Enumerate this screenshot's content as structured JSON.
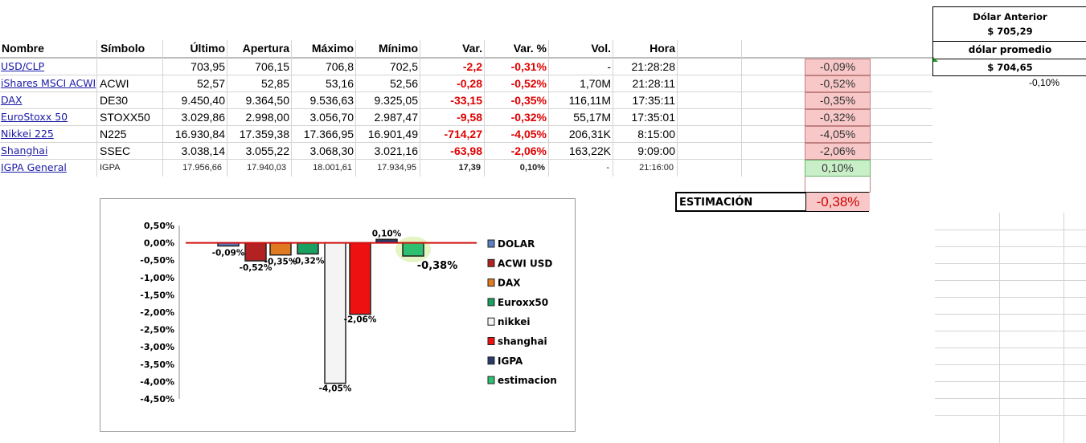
{
  "headers": {
    "nombre": "Nombre",
    "simbolo": "Símbolo",
    "ultimo": "Último",
    "apertura": "Apertura",
    "maximo": "Máximo",
    "minimo": "Mínimo",
    "var": "Var.",
    "var_pct": "Var. %",
    "vol": "Vol.",
    "hora": "Hora"
  },
  "rows": [
    {
      "nombre": "USD/CLP",
      "simbolo": "",
      "ultimo": "703,95",
      "apertura": "706,15",
      "maximo": "706,8",
      "minimo": "702,5",
      "var": "-2,2",
      "var_pct": "-0,31%",
      "vol": "-",
      "hora": "21:28:28",
      "est": "-0,09%"
    },
    {
      "nombre": "iShares MSCI ACWI",
      "simbolo": "ACWI",
      "ultimo": "52,57",
      "apertura": "52,85",
      "maximo": "53,16",
      "minimo": "52,56",
      "var": "-0,28",
      "var_pct": "-0,52%",
      "vol": "1,70M",
      "hora": "21:28:11",
      "est": "-0,52%"
    },
    {
      "nombre": "DAX",
      "simbolo": "DE30",
      "ultimo": "9.450,40",
      "apertura": "9.364,50",
      "maximo": "9.536,63",
      "minimo": "9.325,05",
      "var": "-33,15",
      "var_pct": "-0,35%",
      "vol": "116,11M",
      "hora": "17:35:11",
      "est": "-0,35%"
    },
    {
      "nombre": "EuroStoxx 50",
      "simbolo": "STOXX50",
      "ultimo": "3.029,86",
      "apertura": "2.998,00",
      "maximo": "3.056,70",
      "minimo": "2.987,47",
      "var": "-9,58",
      "var_pct": "-0,32%",
      "vol": "55,17M",
      "hora": "17:35:01",
      "est": "-0,32%"
    },
    {
      "nombre": "Nikkei 225",
      "simbolo": "N225",
      "ultimo": "16.930,84",
      "apertura": "17.359,38",
      "maximo": "17.366,95",
      "minimo": "16.901,49",
      "var": "-714,27",
      "var_pct": "-4,05%",
      "vol": "206,31K",
      "hora": "8:15:00",
      "est": "-4,05%"
    },
    {
      "nombre": "Shanghai",
      "simbolo": "SSEC",
      "ultimo": "3.038,14",
      "apertura": "3.055,22",
      "maximo": "3.068,30",
      "minimo": "3.021,16",
      "var": "-63,98",
      "var_pct": "-2,06%",
      "vol": "163,22K",
      "hora": "9:09:00",
      "est": "-2,06%"
    },
    {
      "nombre": "IGPA General",
      "simbolo": "IGPA",
      "ultimo": "17.956,66",
      "apertura": "17.940,03",
      "maximo": "18.001,61",
      "minimo": "17.934,95",
      "var": "17,39",
      "var_pct": "0,10%",
      "vol": "-",
      "hora": "21:16:00",
      "est": "0,10%"
    }
  ],
  "estimacion": {
    "label": "ESTIMACIÓN",
    "value": "-0,38%"
  },
  "dolar": {
    "anterior_label": "Dólar Anterior",
    "anterior_value": "$ 705,29",
    "promedio_label": "dólar promedio",
    "promedio_value": "$ 704,65",
    "change": "-0,10%"
  },
  "colors": {
    "negative": "#e00000",
    "positive": "#1a9c1a",
    "pink_bg": "#f8c8c8",
    "green_bg": "#c8efc8"
  },
  "chart_data": {
    "type": "bar",
    "categories": [
      "DOLAR",
      "ACWI USD",
      "DAX",
      "Euroxx50",
      "nikkei",
      "shanghai",
      "IGPA",
      "estimacion"
    ],
    "values": [
      -0.09,
      -0.52,
      -0.35,
      -0.32,
      -4.05,
      -2.06,
      0.1,
      -0.38
    ],
    "data_labels": [
      "-0,09%",
      "-0,52%",
      "-0,35%",
      "-0,32%",
      "-4,05%",
      "-2,06%",
      "0,10%",
      "-0,38%"
    ],
    "bar_colors": [
      "#5a7fc4",
      "#b22222",
      "#e07a20",
      "#1aa060",
      "#f4f4f4",
      "#ee1111",
      "#2a3a6a",
      "#2ec070"
    ],
    "ylim": [
      -4.5,
      0.5
    ],
    "yticks": [
      "0,50%",
      "0,00%",
      "-0,50%",
      "-1,00%",
      "-1,50%",
      "-2,00%",
      "-2,50%",
      "-3,00%",
      "-3,50%",
      "-4,00%",
      "-4,50%"
    ],
    "legend_position": "right",
    "reference_line": 0.0
  }
}
